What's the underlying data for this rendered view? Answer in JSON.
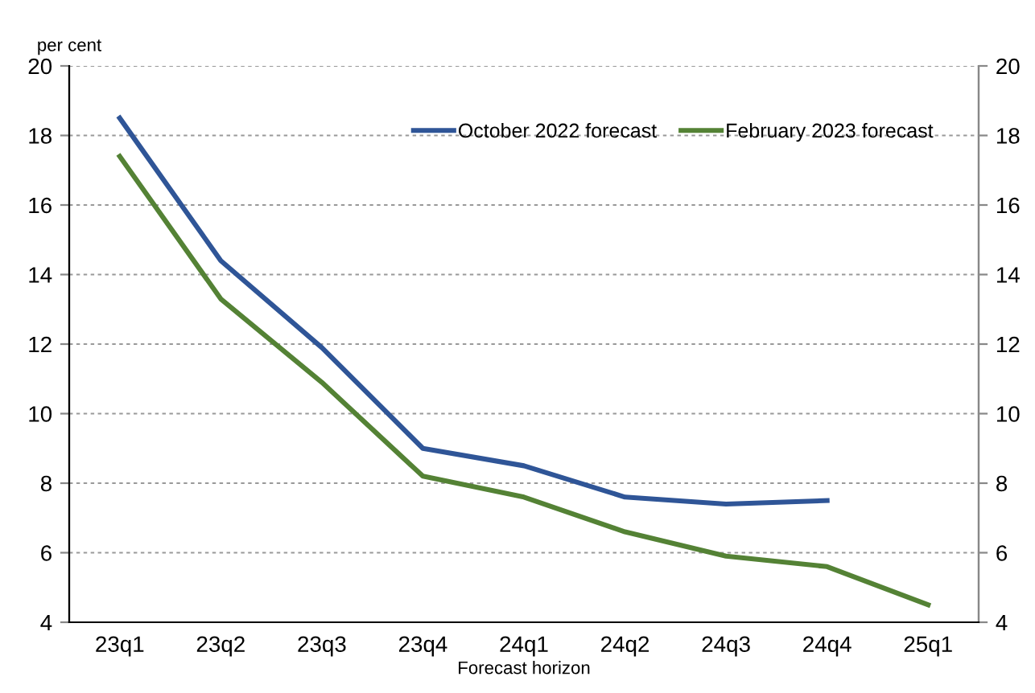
{
  "chart_data": {
    "type": "line",
    "ylabel": "per cent",
    "xlabel": "Forecast horizon",
    "categories": [
      "23q1",
      "23q2",
      "23q3",
      "23q4",
      "24q1",
      "24q2",
      "24q3",
      "24q4",
      "25q1"
    ],
    "series": [
      {
        "name": "October 2022 forecast",
        "color": "#2f5597",
        "values": [
          18.5,
          14.4,
          11.9,
          9.0,
          8.5,
          7.6,
          7.4,
          7.5,
          null
        ]
      },
      {
        "name": "February 2023 forecast",
        "color": "#548235",
        "values": [
          17.4,
          13.3,
          10.9,
          8.2,
          7.6,
          6.6,
          5.9,
          5.6,
          4.5
        ]
      }
    ],
    "ylim": [
      4,
      20
    ],
    "yticks": [
      4,
      6,
      8,
      10,
      12,
      14,
      16,
      18,
      20
    ],
    "y2lim": [
      4,
      20
    ],
    "y2ticks": [
      4,
      6,
      8,
      10,
      12,
      14,
      16,
      18,
      20
    ],
    "grid": true,
    "legend": "top right",
    "marker": "none",
    "line_style": "solid"
  }
}
